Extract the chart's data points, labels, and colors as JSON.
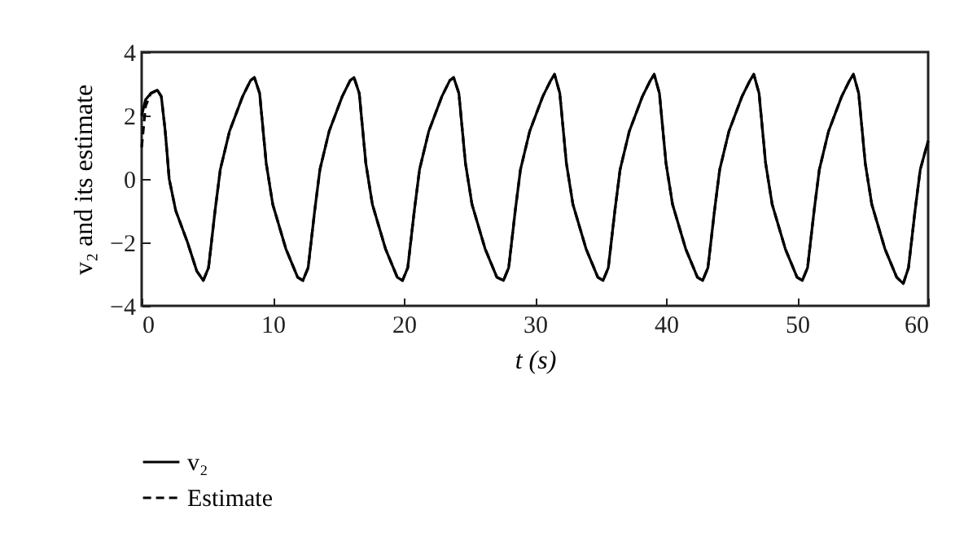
{
  "chart_data": {
    "type": "line",
    "xlabel": "t (s)",
    "ylabel": "v₂ and its estimate",
    "x": [
      0,
      0.3,
      0.7,
      1.2,
      1.5,
      1.8,
      2.1,
      2.6,
      3.5,
      4.2,
      4.7,
      5.1,
      5.6,
      6.0,
      6.7,
      7.7,
      8.3,
      8.6,
      9.0,
      9.5,
      10.0,
      11.0,
      11.9,
      12.3,
      12.7,
      13.2,
      13.6,
      14.3,
      15.3,
      15.9,
      16.2,
      16.6,
      17.1,
      17.6,
      18.6,
      19.5,
      19.9,
      20.3,
      20.8,
      21.2,
      21.9,
      22.9,
      23.5,
      23.8,
      24.2,
      24.7,
      25.2,
      26.2,
      27.1,
      27.6,
      28.0,
      28.5,
      28.9,
      29.6,
      30.6,
      31.2,
      31.5,
      31.9,
      32.4,
      32.9,
      33.9,
      34.8,
      35.2,
      35.6,
      36.1,
      36.5,
      37.2,
      38.2,
      38.8,
      39.1,
      39.5,
      40.0,
      40.5,
      41.5,
      42.4,
      42.8,
      43.2,
      43.7,
      44.1,
      44.8,
      45.8,
      46.4,
      46.7,
      47.1,
      47.6,
      48.1,
      49.1,
      50.0,
      50.4,
      50.8,
      51.3,
      51.7,
      52.4,
      53.4,
      54.0,
      54.3,
      54.7,
      55.2,
      55.7,
      56.7,
      57.6,
      58.1,
      58.5,
      59.0,
      59.4,
      60
    ],
    "series": [
      {
        "name": "v₂",
        "color": "#000000",
        "line_style": "solid",
        "values": [
          2.0,
          2.5,
          2.7,
          2.8,
          2.6,
          1.5,
          0,
          -1.0,
          -2.0,
          -2.9,
          -3.2,
          -2.8,
          -1.0,
          0.3,
          1.5,
          2.6,
          3.1,
          3.2,
          2.7,
          0.5,
          -0.8,
          -2.2,
          -3.1,
          -3.2,
          -2.8,
          -1.0,
          0.3,
          1.5,
          2.6,
          3.1,
          3.2,
          2.7,
          0.5,
          -0.8,
          -2.2,
          -3.1,
          -3.2,
          -2.8,
          -1.0,
          0.3,
          1.5,
          2.6,
          3.1,
          3.2,
          2.7,
          0.5,
          -0.8,
          -2.2,
          -3.1,
          -3.2,
          -2.8,
          -1.0,
          0.3,
          1.5,
          2.6,
          3.1,
          3.3,
          2.7,
          0.5,
          -0.8,
          -2.2,
          -3.1,
          -3.2,
          -2.8,
          -1.0,
          0.3,
          1.5,
          2.6,
          3.1,
          3.3,
          2.7,
          0.5,
          -0.8,
          -2.2,
          -3.1,
          -3.2,
          -2.8,
          -1.0,
          0.3,
          1.5,
          2.6,
          3.1,
          3.3,
          2.7,
          0.5,
          -0.8,
          -2.2,
          -3.1,
          -3.2,
          -2.8,
          -1.0,
          0.3,
          1.5,
          2.6,
          3.1,
          3.3,
          2.7,
          0.5,
          -0.8,
          -2.2,
          -3.1,
          -3.3,
          -2.8,
          -1.0,
          0.3,
          1.2
        ]
      },
      {
        "name": "Estimate",
        "color": "#000000",
        "line_style": "dashed",
        "values": [
          1.0,
          2.3,
          2.7,
          2.8,
          2.6,
          1.5,
          0,
          -1.0,
          -2.0,
          -2.9,
          -3.2,
          -2.8,
          -1.0,
          0.3,
          1.5,
          2.6,
          3.1,
          3.2,
          2.7,
          0.5,
          -0.8,
          -2.2,
          -3.1,
          -3.2,
          -2.8,
          -1.0,
          0.3,
          1.5,
          2.6,
          3.1,
          3.2,
          2.7,
          0.5,
          -0.8,
          -2.2,
          -3.1,
          -3.2,
          -2.8,
          -1.0,
          0.3,
          1.5,
          2.6,
          3.1,
          3.2,
          2.7,
          0.5,
          -0.8,
          -2.2,
          -3.1,
          -3.2,
          -2.8,
          -1.0,
          0.3,
          1.5,
          2.6,
          3.1,
          3.3,
          2.7,
          0.5,
          -0.8,
          -2.2,
          -3.1,
          -3.2,
          -2.8,
          -1.0,
          0.3,
          1.5,
          2.6,
          3.1,
          3.3,
          2.7,
          0.5,
          -0.8,
          -2.2,
          -3.1,
          -3.2,
          -2.8,
          -1.0,
          0.3,
          1.5,
          2.6,
          3.1,
          3.3,
          2.7,
          0.5,
          -0.8,
          -2.2,
          -3.1,
          -3.2,
          -2.8,
          -1.0,
          0.3,
          1.5,
          2.6,
          3.1,
          3.3,
          2.7,
          0.5,
          -0.8,
          -2.2,
          -3.1,
          -3.3,
          -2.8,
          -1.0,
          0.3,
          1.2
        ]
      }
    ],
    "xlim": [
      0,
      60
    ],
    "xticks": [
      0,
      10,
      20,
      30,
      40,
      50,
      60
    ],
    "ylim": [
      -4,
      4
    ],
    "yticks": [
      -4,
      -2,
      0,
      2,
      4
    ],
    "grid": false,
    "legend": "bottom",
    "marker": "none"
  }
}
